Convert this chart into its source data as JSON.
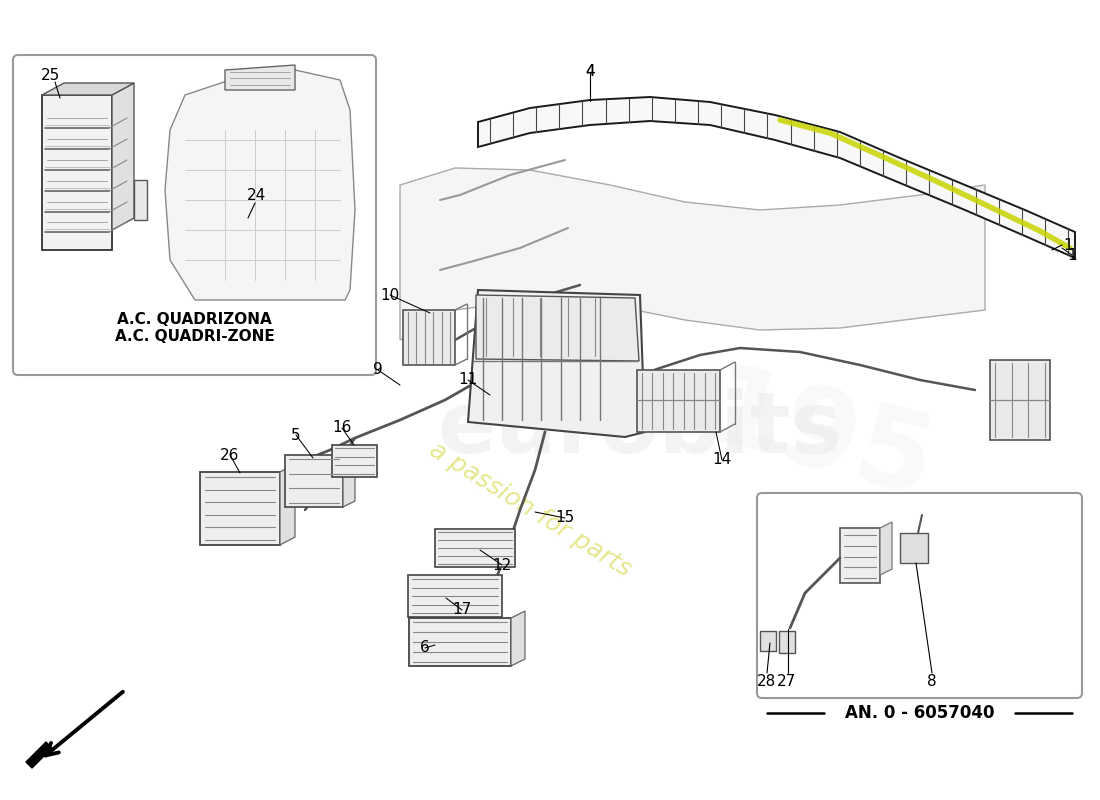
{
  "bg": "#ffffff",
  "lc": "#1a1a1a",
  "mc": "#555555",
  "lgc": "#aaaaaa",
  "highlight": "#c8d400",
  "wm_italic": "a passion for parts",
  "wm_bold": "eurobits",
  "label_ac": "A.C. QUADRIZONA\nA.C. QUADRI-ZONE",
  "label_an": "AN. 0 - 6057040",
  "figsize": [
    11.0,
    8.0
  ],
  "dpi": 100,
  "xlim": [
    0,
    1100
  ],
  "ylim": [
    0,
    800
  ]
}
